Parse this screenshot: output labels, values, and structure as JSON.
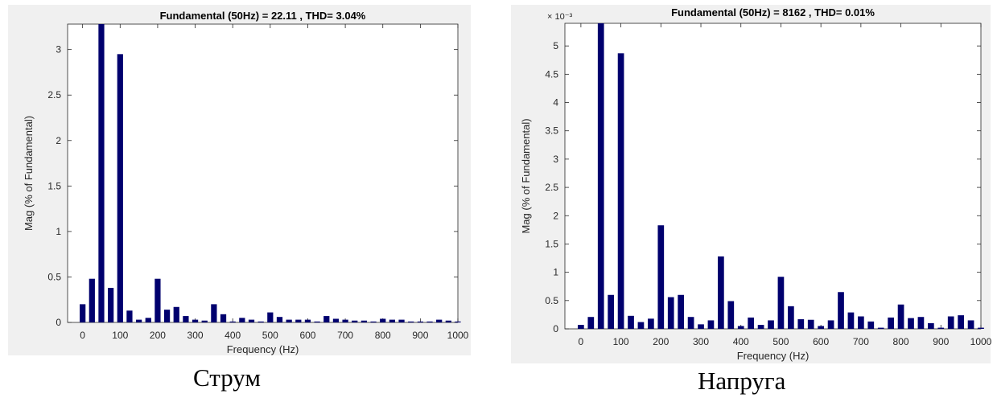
{
  "chart_data": [
    {
      "type": "bar",
      "title": "Fundamental (50Hz) = 22.11 , THD= 3.04%",
      "xlabel": "Frequency (Hz)",
      "ylabel": "Mag (% of Fundamental)",
      "caption": "Струм",
      "xlim": [
        -40,
        1000
      ],
      "ylim": [
        0,
        3.28
      ],
      "xticks": [
        0,
        100,
        200,
        300,
        400,
        500,
        600,
        700,
        800,
        900,
        1000
      ],
      "yticks": [
        0,
        0.5,
        1,
        1.5,
        2,
        2.5,
        3
      ],
      "ytick_labels": [
        "0",
        "0.5",
        "1",
        "1.5",
        "2",
        "2.5",
        "3"
      ],
      "exponent_label": "",
      "bar_color": "#00006e",
      "x": [
        0,
        25,
        50,
        75,
        100,
        125,
        150,
        175,
        200,
        225,
        250,
        275,
        300,
        325,
        350,
        375,
        400,
        425,
        450,
        475,
        500,
        525,
        550,
        575,
        600,
        625,
        650,
        675,
        700,
        725,
        750,
        775,
        800,
        825,
        850,
        875,
        900,
        925,
        950,
        975,
        1000
      ],
      "values": [
        0.2,
        0.48,
        3.28,
        0.38,
        2.95,
        0.13,
        0.03,
        0.05,
        0.48,
        0.14,
        0.17,
        0.07,
        0.03,
        0.02,
        0.2,
        0.09,
        0.01,
        0.05,
        0.03,
        0.01,
        0.11,
        0.06,
        0.03,
        0.03,
        0.03,
        0.01,
        0.07,
        0.04,
        0.03,
        0.02,
        0.02,
        0.01,
        0.04,
        0.03,
        0.03,
        0.01,
        0.01,
        0.01,
        0.03,
        0.02,
        0.01
      ]
    },
    {
      "type": "bar",
      "title": "Fundamental (50Hz) = 8162 , THD= 0.01%",
      "xlabel": "Frequency (Hz)",
      "ylabel": "Mag (% of Fundamental)",
      "caption": "Напруга",
      "xlim": [
        -40,
        1000
      ],
      "ylim": [
        0,
        5.4
      ],
      "xticks": [
        0,
        100,
        200,
        300,
        400,
        500,
        600,
        700,
        800,
        900,
        1000
      ],
      "yticks": [
        0,
        0.5,
        1,
        1.5,
        2,
        2.5,
        3,
        3.5,
        4,
        4.5,
        5
      ],
      "ytick_labels": [
        "0",
        "0.5",
        "1",
        "1.5",
        "2",
        "2.5",
        "3",
        "3.5",
        "4",
        "4.5",
        "5"
      ],
      "exponent_label": "× 10⁻³",
      "bar_color": "#00006e",
      "x": [
        0,
        25,
        50,
        75,
        100,
        125,
        150,
        175,
        200,
        225,
        250,
        275,
        300,
        325,
        350,
        375,
        400,
        425,
        450,
        475,
        500,
        525,
        550,
        575,
        600,
        625,
        650,
        675,
        700,
        725,
        750,
        775,
        800,
        825,
        850,
        875,
        900,
        925,
        950,
        975,
        1000
      ],
      "values": [
        0.07,
        0.21,
        5.4,
        0.6,
        4.87,
        0.23,
        0.12,
        0.18,
        1.83,
        0.56,
        0.6,
        0.21,
        0.08,
        0.15,
        1.28,
        0.49,
        0.05,
        0.2,
        0.07,
        0.15,
        0.92,
        0.4,
        0.17,
        0.16,
        0.05,
        0.15,
        0.65,
        0.29,
        0.22,
        0.13,
        0.02,
        0.2,
        0.43,
        0.19,
        0.21,
        0.1,
        0.02,
        0.22,
        0.24,
        0.15,
        0.02
      ]
    }
  ]
}
